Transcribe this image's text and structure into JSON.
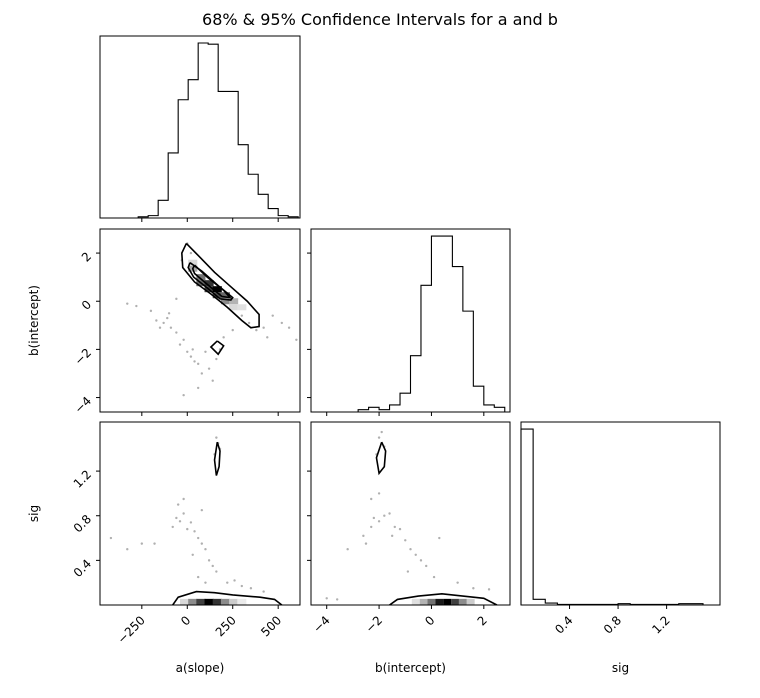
{
  "chart_data": {
    "type": "corner",
    "title": "68% & 95% Confidence Intervals for a and b",
    "parameters": [
      "a(slope)",
      "b(intercept)",
      "sig"
    ],
    "axes": {
      "a": {
        "label": "a(slope)",
        "range": [
          -480,
          620
        ],
        "ticks": [
          -250,
          0,
          250,
          500
        ],
        "tick_labels": [
          "−250",
          "0",
          "250",
          "500"
        ]
      },
      "b": {
        "label": "b(intercept)",
        "range": [
          -4.6,
          3.0
        ],
        "ticks": [
          -4,
          -2,
          0,
          2
        ],
        "tick_labels": [
          "−4",
          "−2",
          "0",
          "2"
        ]
      },
      "sig": {
        "label": "sig",
        "range": [
          0.0,
          1.64
        ],
        "ticks": [
          0.4,
          0.8,
          1.2
        ],
        "tick_labels": [
          "0.4",
          "0.8",
          "1.2"
        ]
      }
    },
    "histograms": {
      "a": {
        "edges": [
          -270,
          -215,
          -160,
          -105,
          -50,
          5,
          60,
          115,
          170,
          225,
          280,
          335,
          390,
          445,
          500,
          555,
          610
        ],
        "counts": [
          1,
          2,
          15,
          55,
          100,
          117,
          148,
          147,
          107,
          107,
          62,
          37,
          20,
          8,
          2,
          1
        ]
      },
      "b": {
        "edges": [
          -4.0,
          -3.6,
          -3.2,
          -2.8,
          -2.4,
          -2.0,
          -1.6,
          -1.2,
          -0.8,
          -0.4,
          0.0,
          0.4,
          0.8,
          1.2,
          1.6,
          2.0,
          2.4,
          2.8
        ],
        "counts": [
          0,
          0,
          0,
          1,
          2,
          1,
          3,
          8,
          24,
          54,
          75,
          75,
          62,
          43,
          11,
          3,
          2
        ]
      },
      "sig": {
        "edges": [
          0.0,
          0.1,
          0.2,
          0.3,
          0.4,
          0.5,
          0.6,
          0.7,
          0.8,
          0.9,
          1.0,
          1.1,
          1.2,
          1.3,
          1.4,
          1.5
        ],
        "counts": [
          93,
          3,
          1,
          0.3,
          0.3,
          0.3,
          0.3,
          0.3,
          0.7,
          0.3,
          0.3,
          0.3,
          0.3,
          0.7,
          0.7
        ]
      }
    },
    "density_cells": {
      "a_vs_b": [
        {
          "a": 30,
          "b": 1.35,
          "w": 0.35
        },
        {
          "a": 75,
          "b": 1.0,
          "w": 0.55
        },
        {
          "a": 75,
          "b": 0.75,
          "w": 0.6
        },
        {
          "a": 120,
          "b": 0.75,
          "w": 0.8
        },
        {
          "a": 120,
          "b": 0.5,
          "w": 0.75
        },
        {
          "a": 165,
          "b": 0.5,
          "w": 1.0
        },
        {
          "a": 165,
          "b": 0.25,
          "w": 0.7
        },
        {
          "a": 210,
          "b": 0.25,
          "w": 0.6
        },
        {
          "a": 210,
          "b": 0.0,
          "w": 0.45
        },
        {
          "a": 255,
          "b": 0.0,
          "w": 0.3
        },
        {
          "a": 255,
          "b": -0.25,
          "w": 0.15
        },
        {
          "a": 300,
          "b": -0.25,
          "w": 0.12
        },
        {
          "a": 30,
          "b": 1.6,
          "w": 0.15
        }
      ],
      "a_vs_sig": [
        {
          "a": -15,
          "sig": 0.025,
          "w": 0.15
        },
        {
          "a": 30,
          "sig": 0.025,
          "w": 0.45
        },
        {
          "a": 75,
          "sig": 0.025,
          "w": 0.75
        },
        {
          "a": 120,
          "sig": 0.025,
          "w": 1.0
        },
        {
          "a": 165,
          "sig": 0.025,
          "w": 0.8
        },
        {
          "a": 210,
          "sig": 0.025,
          "w": 0.45
        },
        {
          "a": 255,
          "sig": 0.025,
          "w": 0.2
        },
        {
          "a": 300,
          "sig": 0.025,
          "w": 0.08
        }
      ],
      "b_vs_sig": [
        {
          "b": -0.3,
          "sig": 0.025,
          "w": 0.3
        },
        {
          "b": 0.0,
          "sig": 0.025,
          "w": 0.55
        },
        {
          "b": 0.3,
          "sig": 0.025,
          "w": 0.9
        },
        {
          "b": 0.6,
          "sig": 0.025,
          "w": 1.0
        },
        {
          "b": 0.9,
          "sig": 0.025,
          "w": 0.75
        },
        {
          "b": 1.2,
          "sig": 0.025,
          "w": 0.45
        },
        {
          "b": 1.5,
          "sig": 0.025,
          "w": 0.2
        },
        {
          "b": -0.6,
          "sig": 0.025,
          "w": 0.12
        }
      ]
    },
    "contours": {
      "a_vs_b": [
        [
          [
            -5,
            2.4
          ],
          [
            60,
            1.9
          ],
          [
            150,
            1.2
          ],
          [
            240,
            0.6
          ],
          [
            330,
            0.0
          ],
          [
            395,
            -0.55
          ],
          [
            395,
            -1.05
          ],
          [
            350,
            -1.1
          ],
          [
            300,
            -0.8
          ],
          [
            220,
            -0.25
          ],
          [
            130,
            0.3
          ],
          [
            40,
            0.8
          ],
          [
            -25,
            1.4
          ],
          [
            -30,
            2.0
          ],
          [
            -5,
            2.4
          ]
        ],
        [
          [
            15,
            1.6
          ],
          [
            80,
            1.25
          ],
          [
            170,
            0.65
          ],
          [
            250,
            0.15
          ],
          [
            240,
            0.05
          ],
          [
            180,
            0.1
          ],
          [
            110,
            0.55
          ],
          [
            35,
            1.0
          ],
          [
            5,
            1.4
          ],
          [
            15,
            1.6
          ]
        ],
        [
          [
            40,
            1.5
          ],
          [
            110,
            1.0
          ],
          [
            200,
            0.45
          ],
          [
            235,
            0.15
          ],
          [
            190,
            0.2
          ],
          [
            110,
            0.7
          ],
          [
            40,
            1.15
          ],
          [
            30,
            1.35
          ],
          [
            40,
            1.5
          ]
        ],
        [
          [
            165,
            -1.65
          ],
          [
            200,
            -1.85
          ],
          [
            170,
            -2.2
          ],
          [
            130,
            -1.9
          ],
          [
            165,
            -1.65
          ]
        ]
      ],
      "a_vs_sig": [
        [
          [
            -80,
            0.0
          ],
          [
            -50,
            0.07
          ],
          [
            50,
            0.12
          ],
          [
            150,
            0.11
          ],
          [
            250,
            0.09
          ],
          [
            400,
            0.07
          ],
          [
            480,
            0.05
          ],
          [
            520,
            0.0
          ]
        ],
        [
          [
            165,
            1.46
          ],
          [
            180,
            1.38
          ],
          [
            175,
            1.24
          ],
          [
            160,
            1.16
          ],
          [
            150,
            1.3
          ],
          [
            165,
            1.46
          ]
        ]
      ],
      "b_vs_sig": [
        [
          [
            -1.6,
            0.0
          ],
          [
            -1.3,
            0.05
          ],
          [
            -0.5,
            0.08
          ],
          [
            0.4,
            0.1
          ],
          [
            1.2,
            0.08
          ],
          [
            2.0,
            0.06
          ],
          [
            2.5,
            0.0
          ]
        ],
        [
          [
            -1.9,
            1.46
          ],
          [
            -1.75,
            1.38
          ],
          [
            -1.8,
            1.24
          ],
          [
            -2.0,
            1.18
          ],
          [
            -2.1,
            1.32
          ],
          [
            -1.9,
            1.46
          ]
        ]
      ]
    },
    "scatter": {
      "a_vs_b": [
        [
          -330,
          -0.1
        ],
        [
          -280,
          -0.2
        ],
        [
          -200,
          -0.4
        ],
        [
          -170,
          -0.8
        ],
        [
          -130,
          -0.9
        ],
        [
          -110,
          -0.7
        ],
        [
          -90,
          -1.1
        ],
        [
          -60,
          -1.3
        ],
        [
          -40,
          -1.8
        ],
        [
          -20,
          -1.6
        ],
        [
          0,
          -2.1
        ],
        [
          20,
          -2.3
        ],
        [
          40,
          -2.5
        ],
        [
          60,
          -2.6
        ],
        [
          80,
          -3.0
        ],
        [
          100,
          -2.1
        ],
        [
          120,
          -2.8
        ],
        [
          140,
          -3.3
        ],
        [
          160,
          -2.4
        ],
        [
          180,
          -2.0
        ],
        [
          200,
          -1.5
        ],
        [
          -20,
          -3.9
        ],
        [
          60,
          -3.6
        ],
        [
          30,
          -2.0
        ],
        [
          0,
          2.4
        ],
        [
          20,
          2.0
        ],
        [
          -30,
          1.7
        ],
        [
          300,
          -0.6
        ],
        [
          340,
          -0.9
        ],
        [
          380,
          -1.2
        ],
        [
          420,
          -1.1
        ],
        [
          470,
          -0.6
        ],
        [
          520,
          -0.9
        ],
        [
          560,
          -1.1
        ],
        [
          600,
          -1.6
        ],
        [
          440,
          -1.5
        ],
        [
          250,
          -1.2
        ],
        [
          -150,
          -1.1
        ],
        [
          -100,
          -0.5
        ],
        [
          -60,
          0.1
        ]
      ],
      "a_vs_sig": [
        [
          -330,
          0.5
        ],
        [
          -250,
          0.55
        ],
        [
          -180,
          0.55
        ],
        [
          -80,
          0.7
        ],
        [
          -60,
          0.78
        ],
        [
          -40,
          0.75
        ],
        [
          -20,
          0.82
        ],
        [
          0,
          0.68
        ],
        [
          20,
          0.74
        ],
        [
          40,
          0.66
        ],
        [
          60,
          0.6
        ],
        [
          80,
          0.55
        ],
        [
          100,
          0.5
        ],
        [
          120,
          0.4
        ],
        [
          140,
          0.35
        ],
        [
          160,
          0.3
        ],
        [
          170,
          1.45
        ],
        [
          160,
          1.5
        ],
        [
          150,
          1.35
        ],
        [
          180,
          1.4
        ],
        [
          -50,
          0.9
        ],
        [
          -20,
          0.95
        ],
        [
          60,
          0.25
        ],
        [
          100,
          0.2
        ],
        [
          220,
          0.2
        ],
        [
          260,
          0.22
        ],
        [
          300,
          0.17
        ],
        [
          350,
          0.15
        ],
        [
          420,
          0.12
        ],
        [
          -420,
          0.6
        ],
        [
          30,
          0.45
        ],
        [
          80,
          0.85
        ]
      ],
      "b_vs_sig": [
        [
          -4.0,
          0.06
        ],
        [
          -3.2,
          0.5
        ],
        [
          -2.5,
          0.55
        ],
        [
          -2.3,
          0.7
        ],
        [
          -2.2,
          0.78
        ],
        [
          -2.0,
          0.75
        ],
        [
          -1.8,
          0.8
        ],
        [
          -1.6,
          0.82
        ],
        [
          -1.4,
          0.7
        ],
        [
          -1.2,
          0.68
        ],
        [
          -1.0,
          0.58
        ],
        [
          -0.8,
          0.5
        ],
        [
          -0.6,
          0.45
        ],
        [
          -0.4,
          0.4
        ],
        [
          -0.2,
          0.35
        ],
        [
          -2.0,
          1.5
        ],
        [
          -1.9,
          1.55
        ],
        [
          -2.1,
          1.35
        ],
        [
          -1.8,
          1.42
        ],
        [
          -2.3,
          0.95
        ],
        [
          -2.0,
          1.0
        ],
        [
          1.0,
          0.2
        ],
        [
          1.6,
          0.15
        ],
        [
          2.2,
          0.14
        ],
        [
          -3.6,
          0.05
        ],
        [
          -1.5,
          0.62
        ],
        [
          -0.9,
          0.3
        ],
        [
          0.1,
          0.25
        ],
        [
          0.3,
          0.6
        ],
        [
          -2.6,
          0.62
        ]
      ]
    }
  }
}
